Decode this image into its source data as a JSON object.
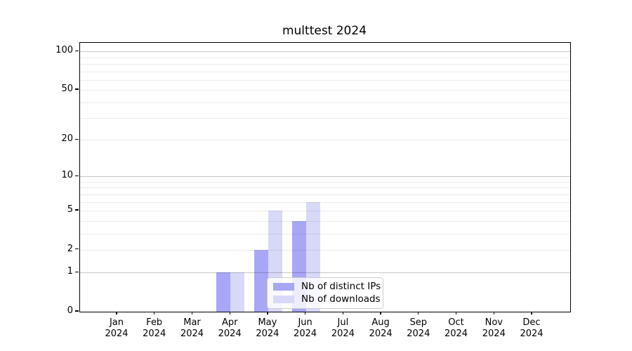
{
  "title": "multtest 2024",
  "y_axis": {
    "ticks": [
      0,
      1,
      2,
      5,
      10,
      20,
      50,
      100
    ]
  },
  "x_axis": {
    "labels": [
      {
        "month": "Jan",
        "year": "2024"
      },
      {
        "month": "Feb",
        "year": "2024"
      },
      {
        "month": "Mar",
        "year": "2024"
      },
      {
        "month": "Apr",
        "year": "2024"
      },
      {
        "month": "May",
        "year": "2024"
      },
      {
        "month": "Jun",
        "year": "2024"
      },
      {
        "month": "Jul",
        "year": "2024"
      },
      {
        "month": "Aug",
        "year": "2024"
      },
      {
        "month": "Sep",
        "year": "2024"
      },
      {
        "month": "Oct",
        "year": "2024"
      },
      {
        "month": "Nov",
        "year": "2024"
      },
      {
        "month": "Dec",
        "year": "2024"
      }
    ]
  },
  "legend": {
    "items": [
      "Nb of distinct IPs",
      "Nb of downloads"
    ]
  },
  "colors": {
    "distinct_ips": "#a7a7f5",
    "downloads": "#d8d8f8",
    "grid_minor": "#ebebeb",
    "grid_major": "#c7c7c7",
    "axis": "#000000",
    "legend_border": "#cccccc"
  },
  "chart_data": {
    "type": "bar",
    "title": "multtest 2024",
    "categories": [
      "Jan 2024",
      "Feb 2024",
      "Mar 2024",
      "Apr 2024",
      "May 2024",
      "Jun 2024",
      "Jul 2024",
      "Aug 2024",
      "Sep 2024",
      "Oct 2024",
      "Nov 2024",
      "Dec 2024"
    ],
    "series": [
      {
        "name": "Nb of distinct IPs",
        "color": "#a7a7f5",
        "values": [
          0,
          0,
          0,
          1,
          2,
          4,
          0,
          0,
          0,
          0,
          0,
          0
        ]
      },
      {
        "name": "Nb of downloads",
        "color": "#d8d8f8",
        "values": [
          0,
          0,
          0,
          1,
          5,
          6,
          0,
          0,
          0,
          0,
          0,
          0
        ]
      }
    ],
    "xlabel": "",
    "ylabel": "",
    "yscale": "log1p",
    "yticks": [
      0,
      1,
      2,
      5,
      10,
      20,
      50,
      100
    ],
    "ylim": [
      0,
      116.5
    ],
    "grid": "horizontal minor log gridlines, darker at powers of 10",
    "legend_position": "inside lower center-right"
  }
}
